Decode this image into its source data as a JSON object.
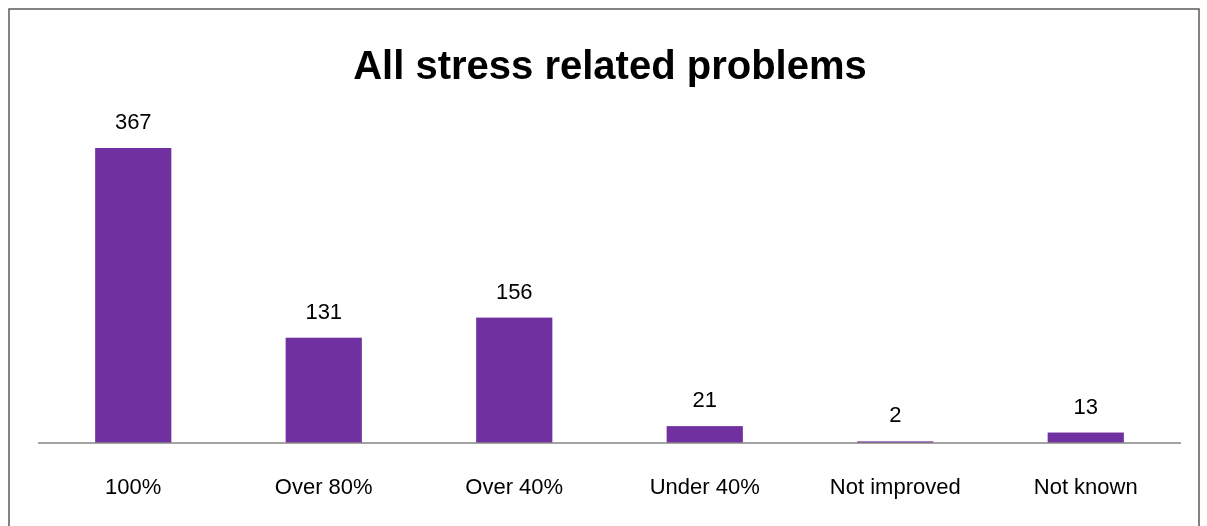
{
  "chart_data": {
    "type": "bar",
    "title": "All stress related problems",
    "categories": [
      "100%",
      "Over 80%",
      "Over 40%",
      "Under 40%",
      "Not improved",
      "Not known"
    ],
    "values": [
      367,
      131,
      156,
      21,
      2,
      13
    ],
    "color": "#7030a0",
    "data_labels": true
  }
}
